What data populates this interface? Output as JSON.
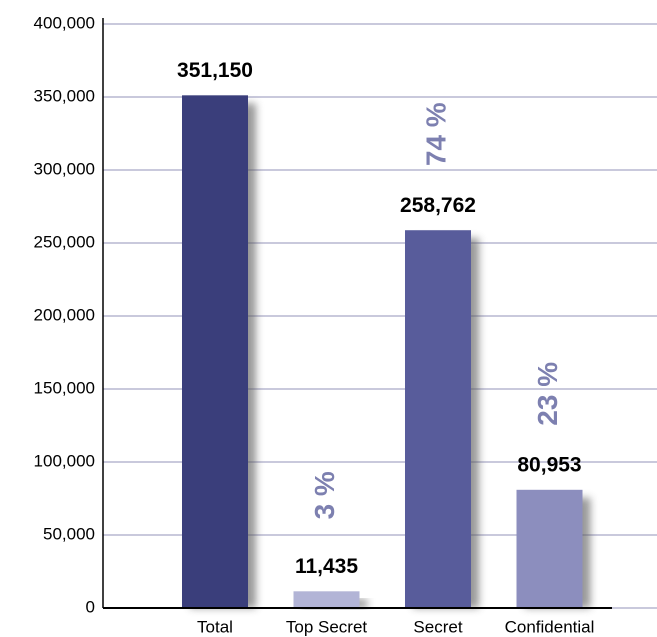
{
  "chart_data": {
    "type": "bar",
    "categories": [
      "Total",
      "Top Secret",
      "Secret",
      "Confidential"
    ],
    "values": [
      351150,
      11435,
      258762,
      80953
    ],
    "value_labels": [
      "351,150",
      "11,435",
      "258,762",
      "80,953"
    ],
    "share_labels": [
      null,
      "3 %",
      "74 %",
      "23 %"
    ],
    "colors": [
      "#3a3e7b",
      "#b2b4d6",
      "#585c9b",
      "#8c8ebe"
    ],
    "ylim": [
      0,
      400000
    ],
    "yticks": [
      0,
      {
        "value": 50000,
        "label": "50,000"
      },
      {
        "value": 100000,
        "label": "100,000"
      },
      {
        "value": 150000,
        "label": "150,000"
      },
      {
        "value": 200000,
        "label": "200,000"
      },
      {
        "value": 250000,
        "label": "250,000"
      },
      {
        "value": 300000,
        "label": "300,000"
      },
      {
        "value": 350000,
        "label": "350,000"
      },
      {
        "value": 400000,
        "label": "400,000"
      }
    ],
    "grid": true
  }
}
